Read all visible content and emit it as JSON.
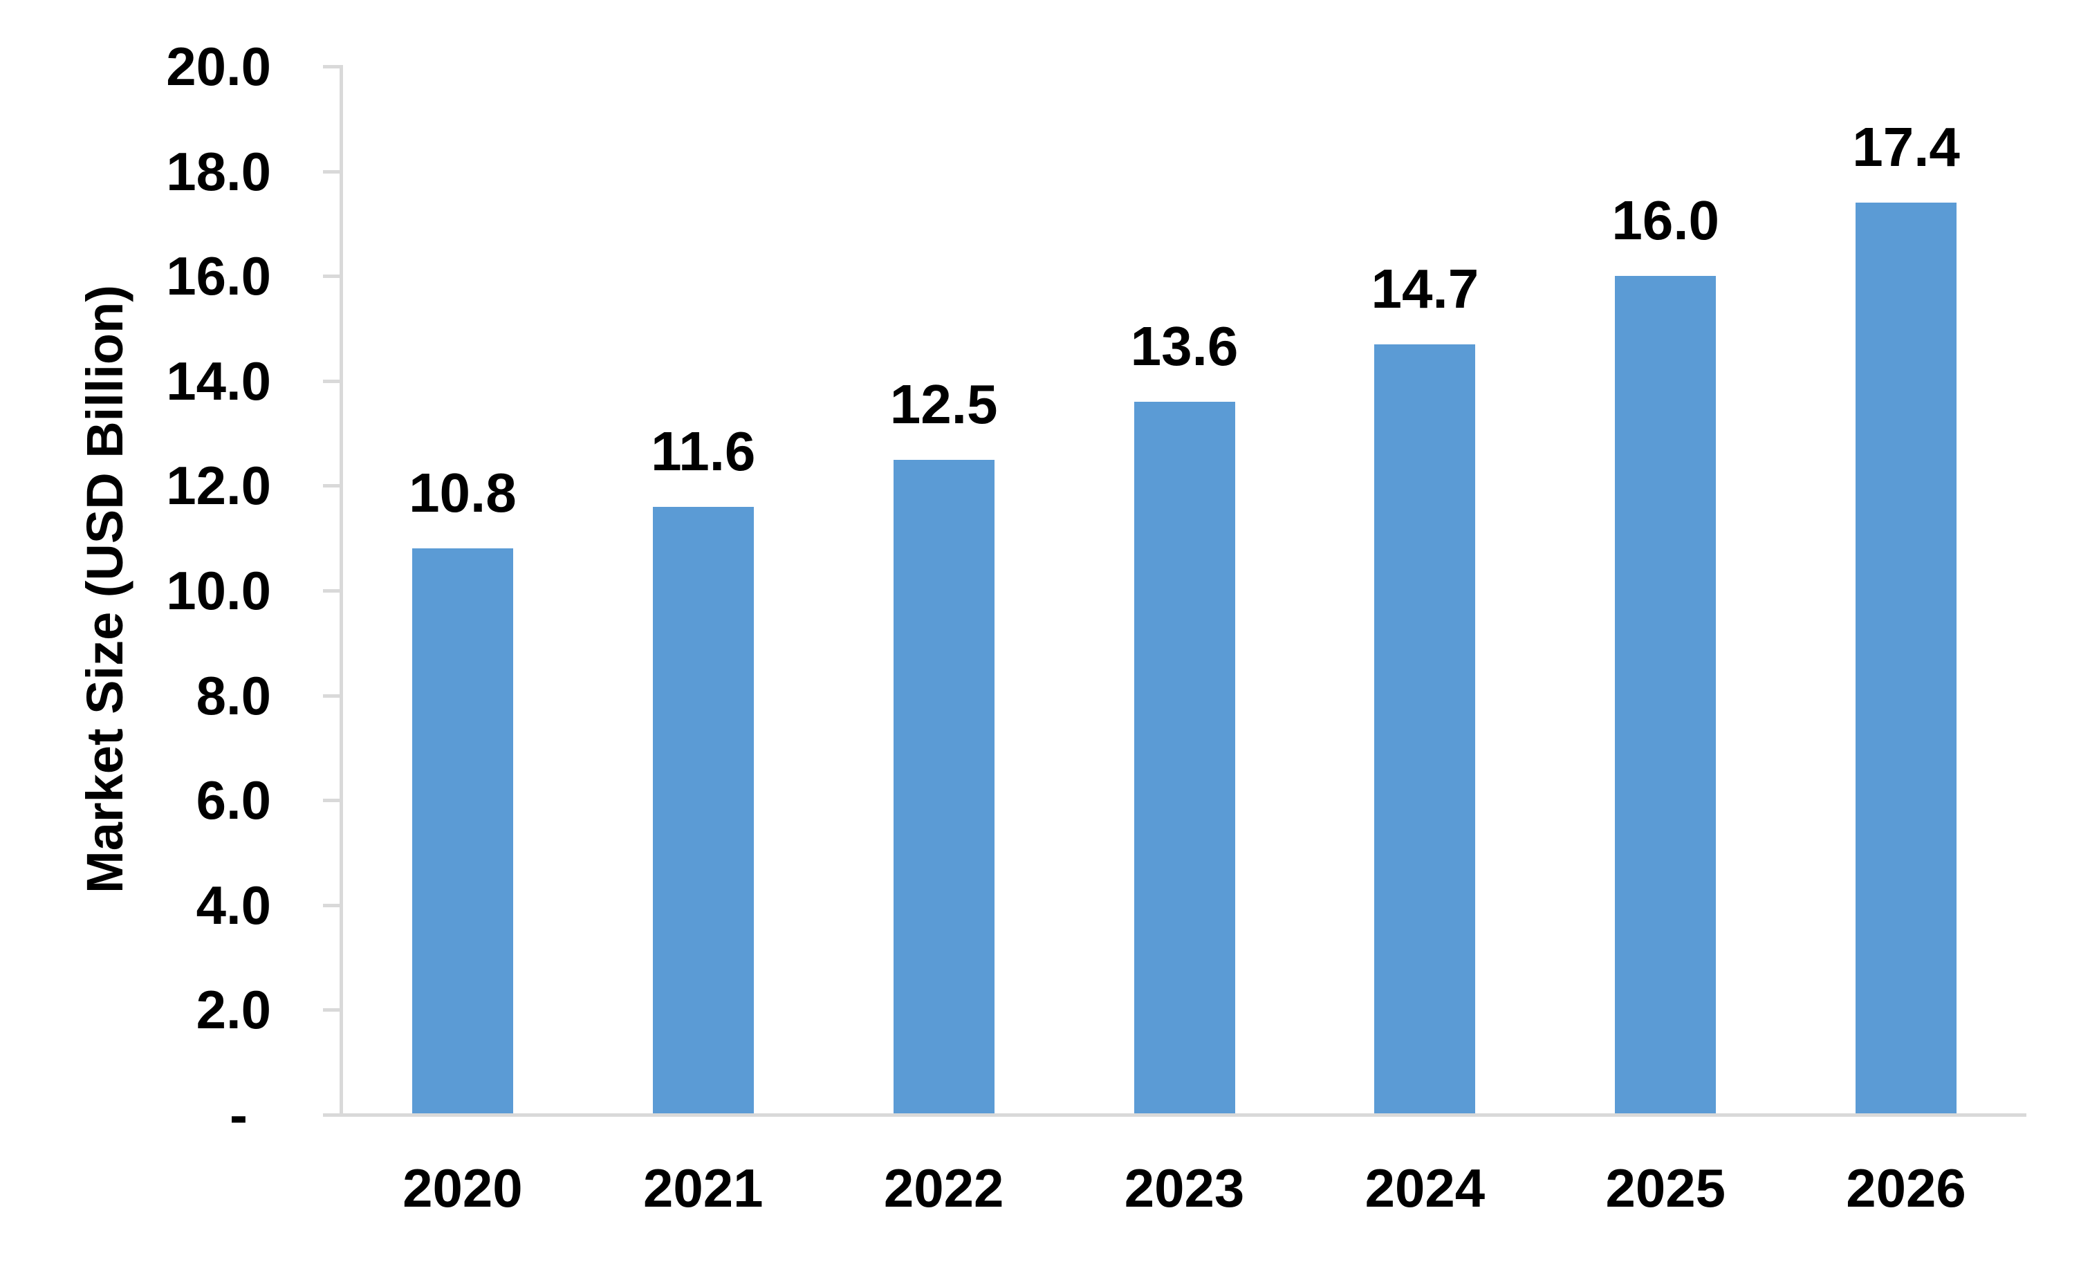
{
  "chart_data": {
    "type": "bar",
    "title": "",
    "categories": [
      "2020",
      "2021",
      "2022",
      "2023",
      "2024",
      "2025",
      "2026"
    ],
    "values": [
      10.8,
      11.6,
      12.5,
      13.6,
      14.7,
      16.0,
      17.4
    ],
    "data_labels": [
      "10.8",
      "11.6",
      "12.5",
      "13.6",
      "14.7",
      "16.0",
      "17.4"
    ],
    "xlabel": "",
    "ylabel": "Market Size (USD Billion)",
    "ylim": [
      0,
      20
    ],
    "y_tick_step": 2,
    "y_ticks": [
      {
        "label": "20.0",
        "value": 20
      },
      {
        "label": "18.0",
        "value": 18
      },
      {
        "label": "16.0",
        "value": 16
      },
      {
        "label": "14.0",
        "value": 14
      },
      {
        "label": "12.0",
        "value": 12
      },
      {
        "label": "10.0",
        "value": 10
      },
      {
        "label": "8.0",
        "value": 8
      },
      {
        "label": "6.0",
        "value": 6
      },
      {
        "label": "4.0",
        "value": 4
      },
      {
        "label": "2.0",
        "value": 2
      },
      {
        "label": "-",
        "value": 0
      }
    ],
    "grid": false,
    "legend": "none",
    "bar_color": "#5B9BD5",
    "axis_color": "#D9D9D9",
    "text_color": "#000000",
    "background_color": "#FFFFFF"
  }
}
